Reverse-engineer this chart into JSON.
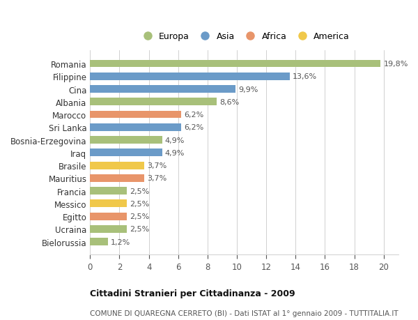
{
  "categories": [
    "Romania",
    "Filippine",
    "Cina",
    "Albania",
    "Marocco",
    "Sri Lanka",
    "Bosnia-Erzegovina",
    "Iraq",
    "Brasile",
    "Mauritius",
    "Francia",
    "Messico",
    "Egitto",
    "Ucraina",
    "Bielorussia"
  ],
  "values": [
    19.8,
    13.6,
    9.9,
    8.6,
    6.2,
    6.2,
    4.9,
    4.9,
    3.7,
    3.7,
    2.5,
    2.5,
    2.5,
    2.5,
    1.2
  ],
  "labels": [
    "19,8%",
    "13,6%",
    "9,9%",
    "8,6%",
    "6,2%",
    "6,2%",
    "4,9%",
    "4,9%",
    "3,7%",
    "3,7%",
    "2,5%",
    "2,5%",
    "2,5%",
    "2,5%",
    "1,2%"
  ],
  "colors": [
    "#a8c07a",
    "#6b9bc8",
    "#6b9bc8",
    "#a8c07a",
    "#e8956a",
    "#6b9bc8",
    "#a8c07a",
    "#6b9bc8",
    "#f0c84a",
    "#e8956a",
    "#a8c07a",
    "#f0c84a",
    "#e8956a",
    "#a8c07a",
    "#a8c07a"
  ],
  "legend_labels": [
    "Europa",
    "Asia",
    "Africa",
    "America"
  ],
  "legend_colors": [
    "#a8c07a",
    "#6b9bc8",
    "#e8956a",
    "#f0c84a"
  ],
  "xlim": [
    0,
    21
  ],
  "xticks": [
    0,
    2,
    4,
    6,
    8,
    10,
    12,
    14,
    16,
    18,
    20
  ],
  "title_bold": "Cittadini Stranieri per Cittadinanza - 2009",
  "subtitle": "COMUNE DI QUAREGNA CERRETO (BI) - Dati ISTAT al 1° gennaio 2009 - TUTTITALIA.IT",
  "bg_color": "#ffffff",
  "grid_color": "#d0d0d0",
  "bar_height": 0.6,
  "label_fontsize": 8.0,
  "ytick_fontsize": 8.5,
  "xtick_fontsize": 8.5,
  "legend_fontsize": 9.0,
  "title_fontsize": 9.0,
  "subtitle_fontsize": 7.5
}
